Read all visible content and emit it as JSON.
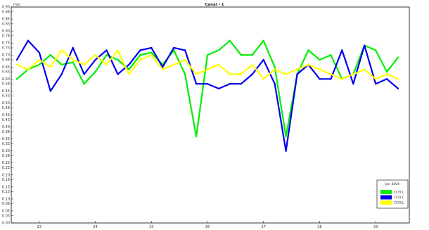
{
  "chart_data": {
    "type": "line",
    "title": "Canal - 1",
    "ylabel": "m/s",
    "xlabel": "",
    "grid": false,
    "legend_placement": "bottom-right",
    "ylim": [
      0,
      0.9
    ],
    "xlim": [
      22.5,
      29.6
    ],
    "y_ticks": [
      "0.90",
      "0.88",
      "0.85",
      "0.83",
      "0.80",
      "0.78",
      "0.75",
      "0.73",
      "0.70",
      "0.68",
      "0.65",
      "0.63",
      "0.60",
      "0.58",
      "0.55",
      "0.53",
      "0.50",
      "0.48",
      "0.45",
      "0.43",
      "0.40",
      "0.38",
      "0.35",
      "0.33",
      "0.30",
      "0.28",
      "0.25",
      "0.23",
      "0.20",
      "0.18",
      "0.15",
      "0.13",
      "0.10",
      "0.08",
      "0.05",
      "0.03",
      "0.00"
    ],
    "x_ticks": [
      "23",
      "24",
      "25",
      "26",
      "27",
      "28",
      "29"
    ],
    "legend_title": "Jan 2004",
    "series": [
      {
        "name": "CCELL",
        "color": "#00ee00",
        "x": [
          22.6,
          22.8,
          23.0,
          23.2,
          23.4,
          23.6,
          23.8,
          24.0,
          24.2,
          24.4,
          24.6,
          24.8,
          25.0,
          25.2,
          25.4,
          25.6,
          25.8,
          26.0,
          26.2,
          26.4,
          26.6,
          26.8,
          27.0,
          27.2,
          27.4,
          27.6,
          27.8,
          28.0,
          28.2,
          28.4,
          28.6,
          28.8,
          29.0,
          29.2,
          29.4
        ],
        "y": [
          0.6,
          0.64,
          0.66,
          0.7,
          0.66,
          0.67,
          0.58,
          0.63,
          0.7,
          0.68,
          0.64,
          0.7,
          0.71,
          0.66,
          0.72,
          0.62,
          0.36,
          0.7,
          0.72,
          0.76,
          0.7,
          0.7,
          0.76,
          0.65,
          0.36,
          0.62,
          0.72,
          0.68,
          0.7,
          0.6,
          0.62,
          0.74,
          0.72,
          0.63,
          0.69
        ]
      },
      {
        "name": "CCELL",
        "color": "#0000ee",
        "x": [
          22.6,
          22.8,
          23.0,
          23.2,
          23.4,
          23.6,
          23.8,
          24.0,
          24.2,
          24.4,
          24.6,
          24.8,
          25.0,
          25.2,
          25.4,
          25.6,
          25.8,
          26.0,
          26.2,
          26.4,
          26.6,
          26.8,
          27.0,
          27.2,
          27.4,
          27.6,
          27.8,
          28.0,
          28.2,
          28.4,
          28.6,
          28.8,
          29.0,
          29.2,
          29.4
        ],
        "y": [
          0.68,
          0.76,
          0.71,
          0.55,
          0.62,
          0.73,
          0.62,
          0.68,
          0.72,
          0.62,
          0.66,
          0.72,
          0.73,
          0.65,
          0.73,
          0.72,
          0.58,
          0.58,
          0.56,
          0.58,
          0.58,
          0.62,
          0.68,
          0.58,
          0.3,
          0.62,
          0.66,
          0.6,
          0.6,
          0.72,
          0.58,
          0.74,
          0.58,
          0.6,
          0.56
        ]
      },
      {
        "name": "CCELL",
        "color": "#ffff00",
        "x": [
          22.6,
          22.8,
          23.0,
          23.2,
          23.4,
          23.6,
          23.8,
          24.0,
          24.2,
          24.4,
          24.6,
          24.8,
          25.0,
          25.2,
          25.4,
          25.6,
          25.8,
          26.0,
          26.2,
          26.4,
          26.6,
          26.8,
          27.0,
          27.2,
          27.4,
          27.6,
          27.8,
          28.0,
          28.2,
          28.4,
          28.6,
          28.8,
          29.0,
          29.2,
          29.4
        ],
        "y": [
          0.66,
          0.64,
          0.68,
          0.65,
          0.72,
          0.68,
          0.66,
          0.7,
          0.66,
          0.72,
          0.62,
          0.68,
          0.7,
          0.64,
          0.66,
          0.68,
          0.62,
          0.64,
          0.66,
          0.62,
          0.62,
          0.66,
          0.6,
          0.64,
          0.62,
          0.64,
          0.66,
          0.64,
          0.62,
          0.6,
          0.62,
          0.64,
          0.6,
          0.62,
          0.6
        ]
      }
    ]
  }
}
